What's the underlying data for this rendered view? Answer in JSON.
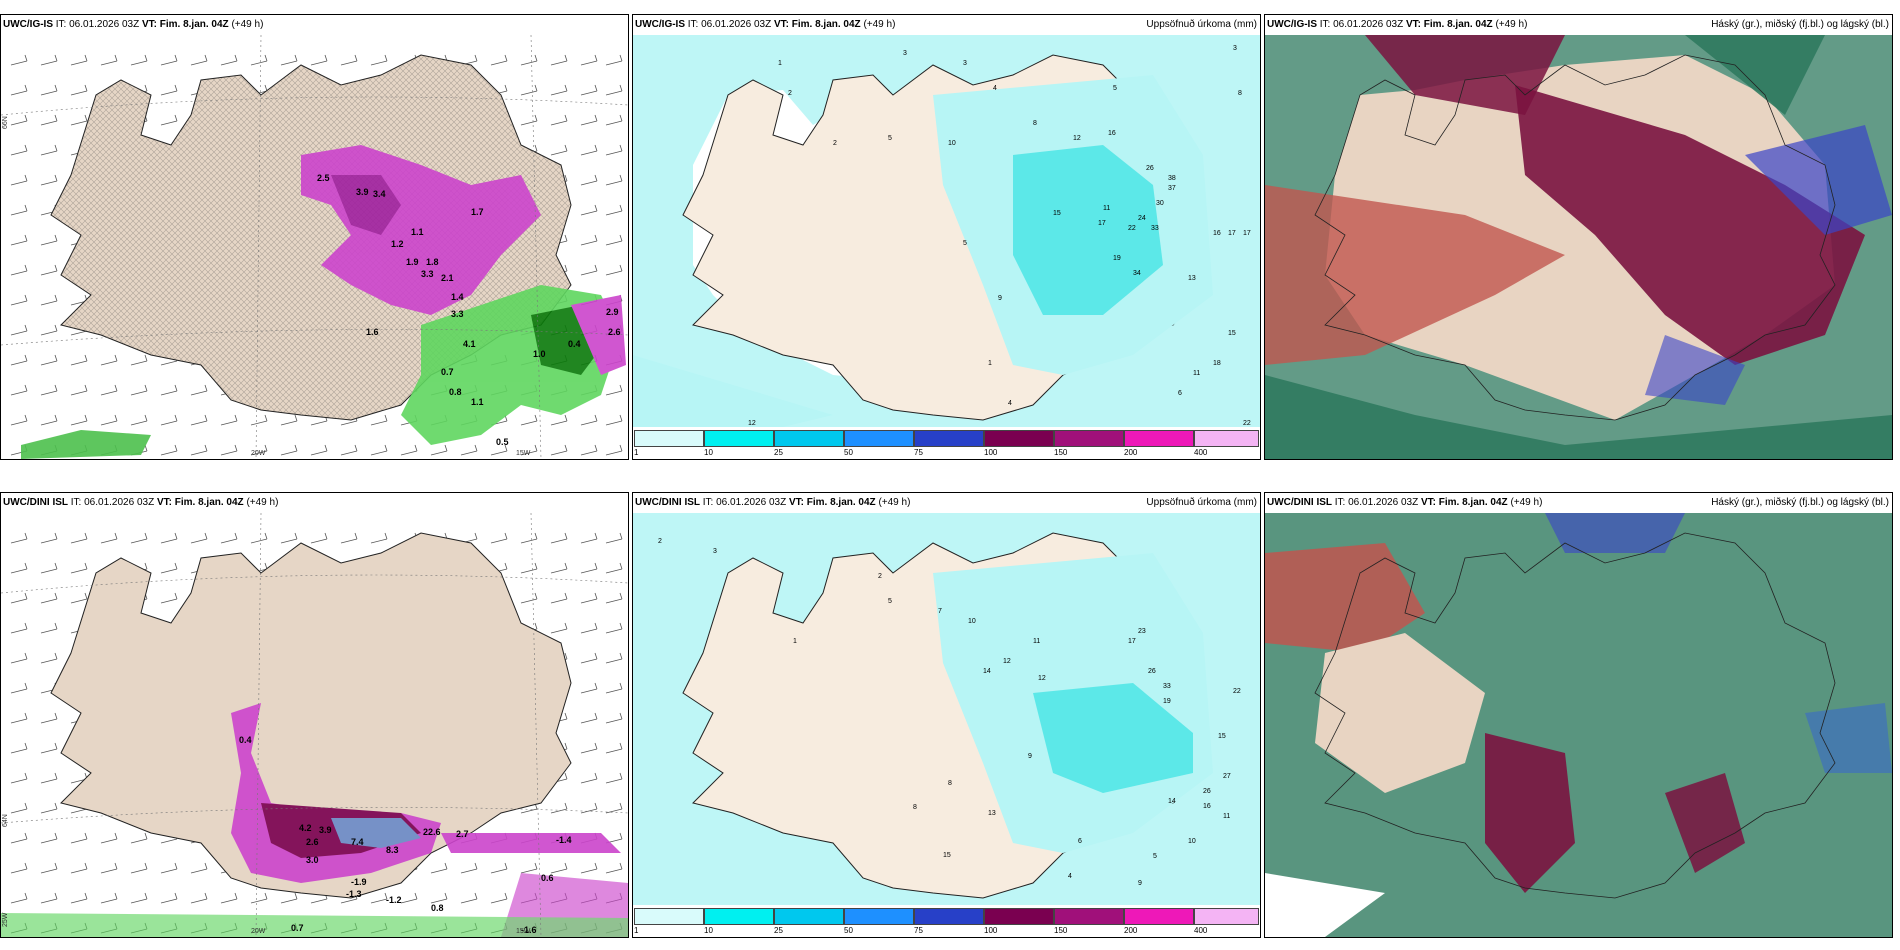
{
  "panels": [
    {
      "model": "UWC/IG-IS",
      "it": "IT: 06.01.2026 03Z",
      "vt_label": "VT:",
      "vt": "Fim. 8.jan. 04Z",
      "lead": "(+49 h)",
      "right": ""
    },
    {
      "model": "UWC/IG-IS",
      "it": "IT: 06.01.2026 03Z",
      "vt_label": "VT:",
      "vt": "Fim. 8.jan. 04Z",
      "lead": "(+49 h)",
      "right": "Uppsöfnuð úrkoma (mm)"
    },
    {
      "model": "UWC/IG-IS",
      "it": "IT: 06.01.2026 03Z",
      "vt_label": "VT:",
      "vt": "Fim. 8.jan. 04Z",
      "lead": "(+49 h)",
      "right": "Háský (gr.), miðský (fj.bl.) og lágský (bl.)"
    },
    {
      "model": "UWC/DINI ISL",
      "it": "IT: 06.01.2026 03Z",
      "vt_label": "VT:",
      "vt": "Fim. 8.jan. 04Z",
      "lead": "(+49 h)",
      "right": ""
    },
    {
      "model": "UWC/DINI ISL",
      "it": "IT: 06.01.2026 03Z",
      "vt_label": "VT:",
      "vt": "Fim. 8.jan. 04Z",
      "lead": "(+49 h)",
      "right": "Uppsöfnuð úrkoma (mm)"
    },
    {
      "model": "UWC/DINI ISL",
      "it": "IT: 06.01.2026 03Z",
      "vt_label": "VT:",
      "vt": "Fim. 8.jan. 04Z",
      "lead": "(+49 h)",
      "right": "Háský (gr.), miðský (fj.bl.) og lágský (bl.)"
    }
  ],
  "axis_labels": {
    "lat66": "66N",
    "lat64": "64N",
    "lon20": "20W",
    "lon15": "15W",
    "lon25": "25W"
  },
  "colorbar": {
    "ticks": [
      "1",
      "10",
      "25",
      "50",
      "75",
      "100",
      "150",
      "200",
      "400"
    ],
    "colors": [
      "#d9fbfb",
      "#00f0f0",
      "#00c8ee",
      "#1e90ff",
      "#2740c8",
      "#7a0050",
      "#a0107a",
      "#ee18b8",
      "#f4b4f4"
    ]
  },
  "precip_values_top": [
    "1",
    "2",
    "3",
    "5",
    "3",
    "4",
    "5",
    "10",
    "8",
    "12",
    "16",
    "24",
    "26",
    "38",
    "37",
    "30",
    "22",
    "33",
    "34",
    "19",
    "17",
    "13",
    "11",
    "15",
    "16",
    "17",
    "17",
    "18",
    "15",
    "11",
    "22",
    "12",
    "6",
    "9",
    "8",
    "5",
    "4",
    "1",
    "2",
    "3"
  ],
  "precip_values_bottom": [
    "2",
    "3",
    "1",
    "2",
    "5",
    "7",
    "10",
    "11",
    "12",
    "14",
    "17",
    "23",
    "26",
    "33",
    "19",
    "22",
    "15",
    "27",
    "26",
    "14",
    "12",
    "13",
    "9",
    "8",
    "6",
    "10",
    "15",
    "16",
    "11",
    "4",
    "5",
    "8",
    "9"
  ],
  "temp_labels_top": [
    "2.5",
    "3.9",
    "3.4",
    "1.2",
    "1.1",
    "1.9",
    "1.8",
    "3.3",
    "2.1",
    "1.4",
    "3.3",
    "4.1",
    "0.7",
    "0.8",
    "1.1",
    "0.5",
    "2.9",
    "2.6",
    "0.4",
    "1.0",
    "1.6",
    "1.7"
  ],
  "temp_labels_bottom": [
    "0.4",
    "4.2",
    "3.9",
    "2.6",
    "3.0",
    "7.4",
    "8.3",
    "22.6",
    "2.7",
    "-1.9",
    "-1.3",
    "-1.2",
    "0.7",
    "0.8",
    "0.6",
    "-1.4",
    "-1.6"
  ]
}
